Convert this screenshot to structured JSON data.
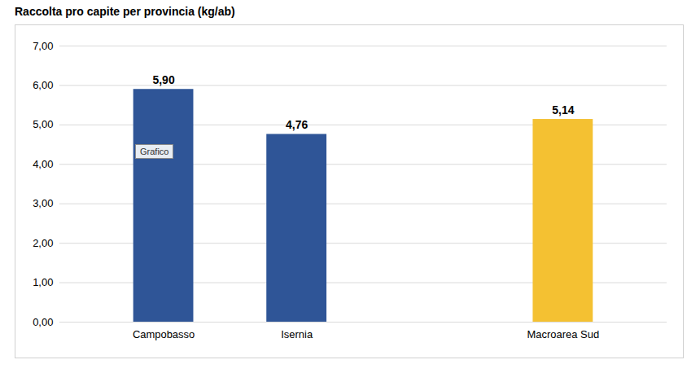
{
  "chart_data": {
    "type": "bar",
    "title": "Raccolta pro capite per provincia (kg/ab)",
    "categories": [
      "Campobasso",
      "Isernia",
      null,
      "Macroarea Sud"
    ],
    "values": [
      5.9,
      4.76,
      null,
      5.14
    ],
    "value_labels": [
      "5,90",
      "4,76",
      null,
      "5,14"
    ],
    "colors": [
      "#2f5597",
      "#2f5597",
      null,
      "#f4c132"
    ],
    "ylim": [
      0,
      7
    ],
    "yticks": [
      {
        "value": 0,
        "label": "0,00"
      },
      {
        "value": 1,
        "label": "1,00"
      },
      {
        "value": 2,
        "label": "2,00"
      },
      {
        "value": 3,
        "label": "3,00"
      },
      {
        "value": 4,
        "label": "4,00"
      },
      {
        "value": 5,
        "label": "5,00"
      },
      {
        "value": 6,
        "label": "6,00"
      },
      {
        "value": 7,
        "label": "7,00"
      }
    ],
    "grid": true,
    "data_labels": true,
    "annotations": [
      {
        "text": "Grafico",
        "x": "Campobasso",
        "y": 4.3
      }
    ]
  }
}
